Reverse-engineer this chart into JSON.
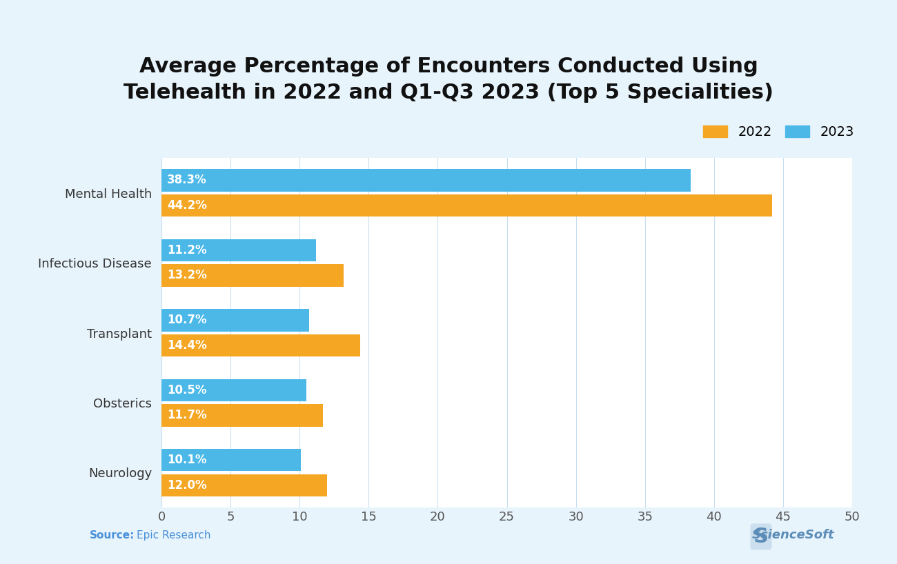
{
  "title": "Average Percentage of Encounters Conducted Using\nTelehealth in 2022 and Q1-Q3 2023 (Top 5 Specialities)",
  "categories": [
    "Mental Health",
    "Infectious Disease",
    "Transplant",
    "Obsterics",
    "Neurology"
  ],
  "values_2022": [
    44.2,
    13.2,
    14.4,
    11.7,
    12.0
  ],
  "values_2023": [
    38.3,
    11.2,
    10.7,
    10.5,
    10.1
  ],
  "labels_2022": [
    "44.2%",
    "13.2%",
    "14.4%",
    "11.7%",
    "12.0%"
  ],
  "labels_2023": [
    "38.3%",
    "11.2%",
    "10.7%",
    "10.5%",
    "10.1%"
  ],
  "color_2022": "#F5A623",
  "color_2023": "#4BB8E8",
  "xlim": [
    0,
    50
  ],
  "xticks": [
    0,
    5,
    10,
    15,
    20,
    25,
    30,
    35,
    40,
    45,
    50
  ],
  "bar_height": 0.32,
  "bar_gap": 0.04,
  "background_color": "#E8F4FC",
  "plot_background": "#FFFFFF",
  "legend_2022": "2022",
  "legend_2023": "2023",
  "source_label": "Source:",
  "source_text": "Epic Research",
  "title_fontsize": 22,
  "label_fontsize": 12,
  "tick_fontsize": 13,
  "legend_fontsize": 14,
  "category_fontsize": 13
}
